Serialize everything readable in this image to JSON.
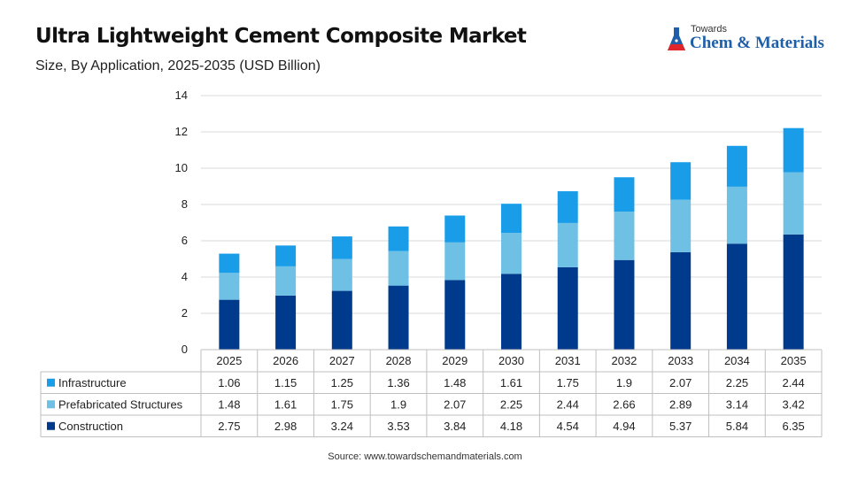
{
  "header": {
    "title": "Ultra Lightweight Cement Composite Market",
    "subtitle": "Size, By Application, 2025-2035 (USD Billion)"
  },
  "logo": {
    "small": "Towards",
    "brand": "Chem & Materials",
    "icon": "flask-icon"
  },
  "footer": {
    "source": "Source: www.towardschemandmaterials.com"
  },
  "chart_data": {
    "type": "bar",
    "stacked": true,
    "categories": [
      "2025",
      "2026",
      "2027",
      "2028",
      "2029",
      "2030",
      "2031",
      "2032",
      "2033",
      "2034",
      "2035"
    ],
    "series": [
      {
        "name": "Construction",
        "color": "#003a8c",
        "values": [
          2.75,
          2.98,
          3.24,
          3.53,
          3.84,
          4.18,
          4.54,
          4.94,
          5.37,
          5.84,
          6.35
        ],
        "labels": [
          "2.75",
          "2.98",
          "3.24",
          "3.53",
          "3.84",
          "4.18",
          "4.54",
          "4.94",
          "5.37",
          "5.84",
          "6.35"
        ]
      },
      {
        "name": "Prefabricated Structures",
        "color": "#6ec1e4",
        "values": [
          1.48,
          1.61,
          1.75,
          1.9,
          2.07,
          2.25,
          2.44,
          2.66,
          2.89,
          3.14,
          3.42
        ],
        "labels": [
          "1.48",
          "1.61",
          "1.75",
          "1.9",
          "2.07",
          "2.25",
          "2.44",
          "2.66",
          "2.89",
          "3.14",
          "3.42"
        ]
      },
      {
        "name": "Infrastructure",
        "color": "#1a9de8",
        "values": [
          1.06,
          1.15,
          1.25,
          1.36,
          1.48,
          1.61,
          1.75,
          1.9,
          2.07,
          2.25,
          2.44
        ],
        "labels": [
          "1.06",
          "1.15",
          "1.25",
          "1.36",
          "1.48",
          "1.61",
          "1.75",
          "1.9",
          "2.07",
          "2.25",
          "2.44"
        ]
      }
    ],
    "table_row_order": [
      "Infrastructure",
      "Prefabricated Structures",
      "Construction"
    ],
    "ylim": [
      0,
      14
    ],
    "yticks": [
      "0",
      "2",
      "4",
      "6",
      "8",
      "10",
      "12",
      "14"
    ],
    "grid": true,
    "legend": "data-table"
  }
}
